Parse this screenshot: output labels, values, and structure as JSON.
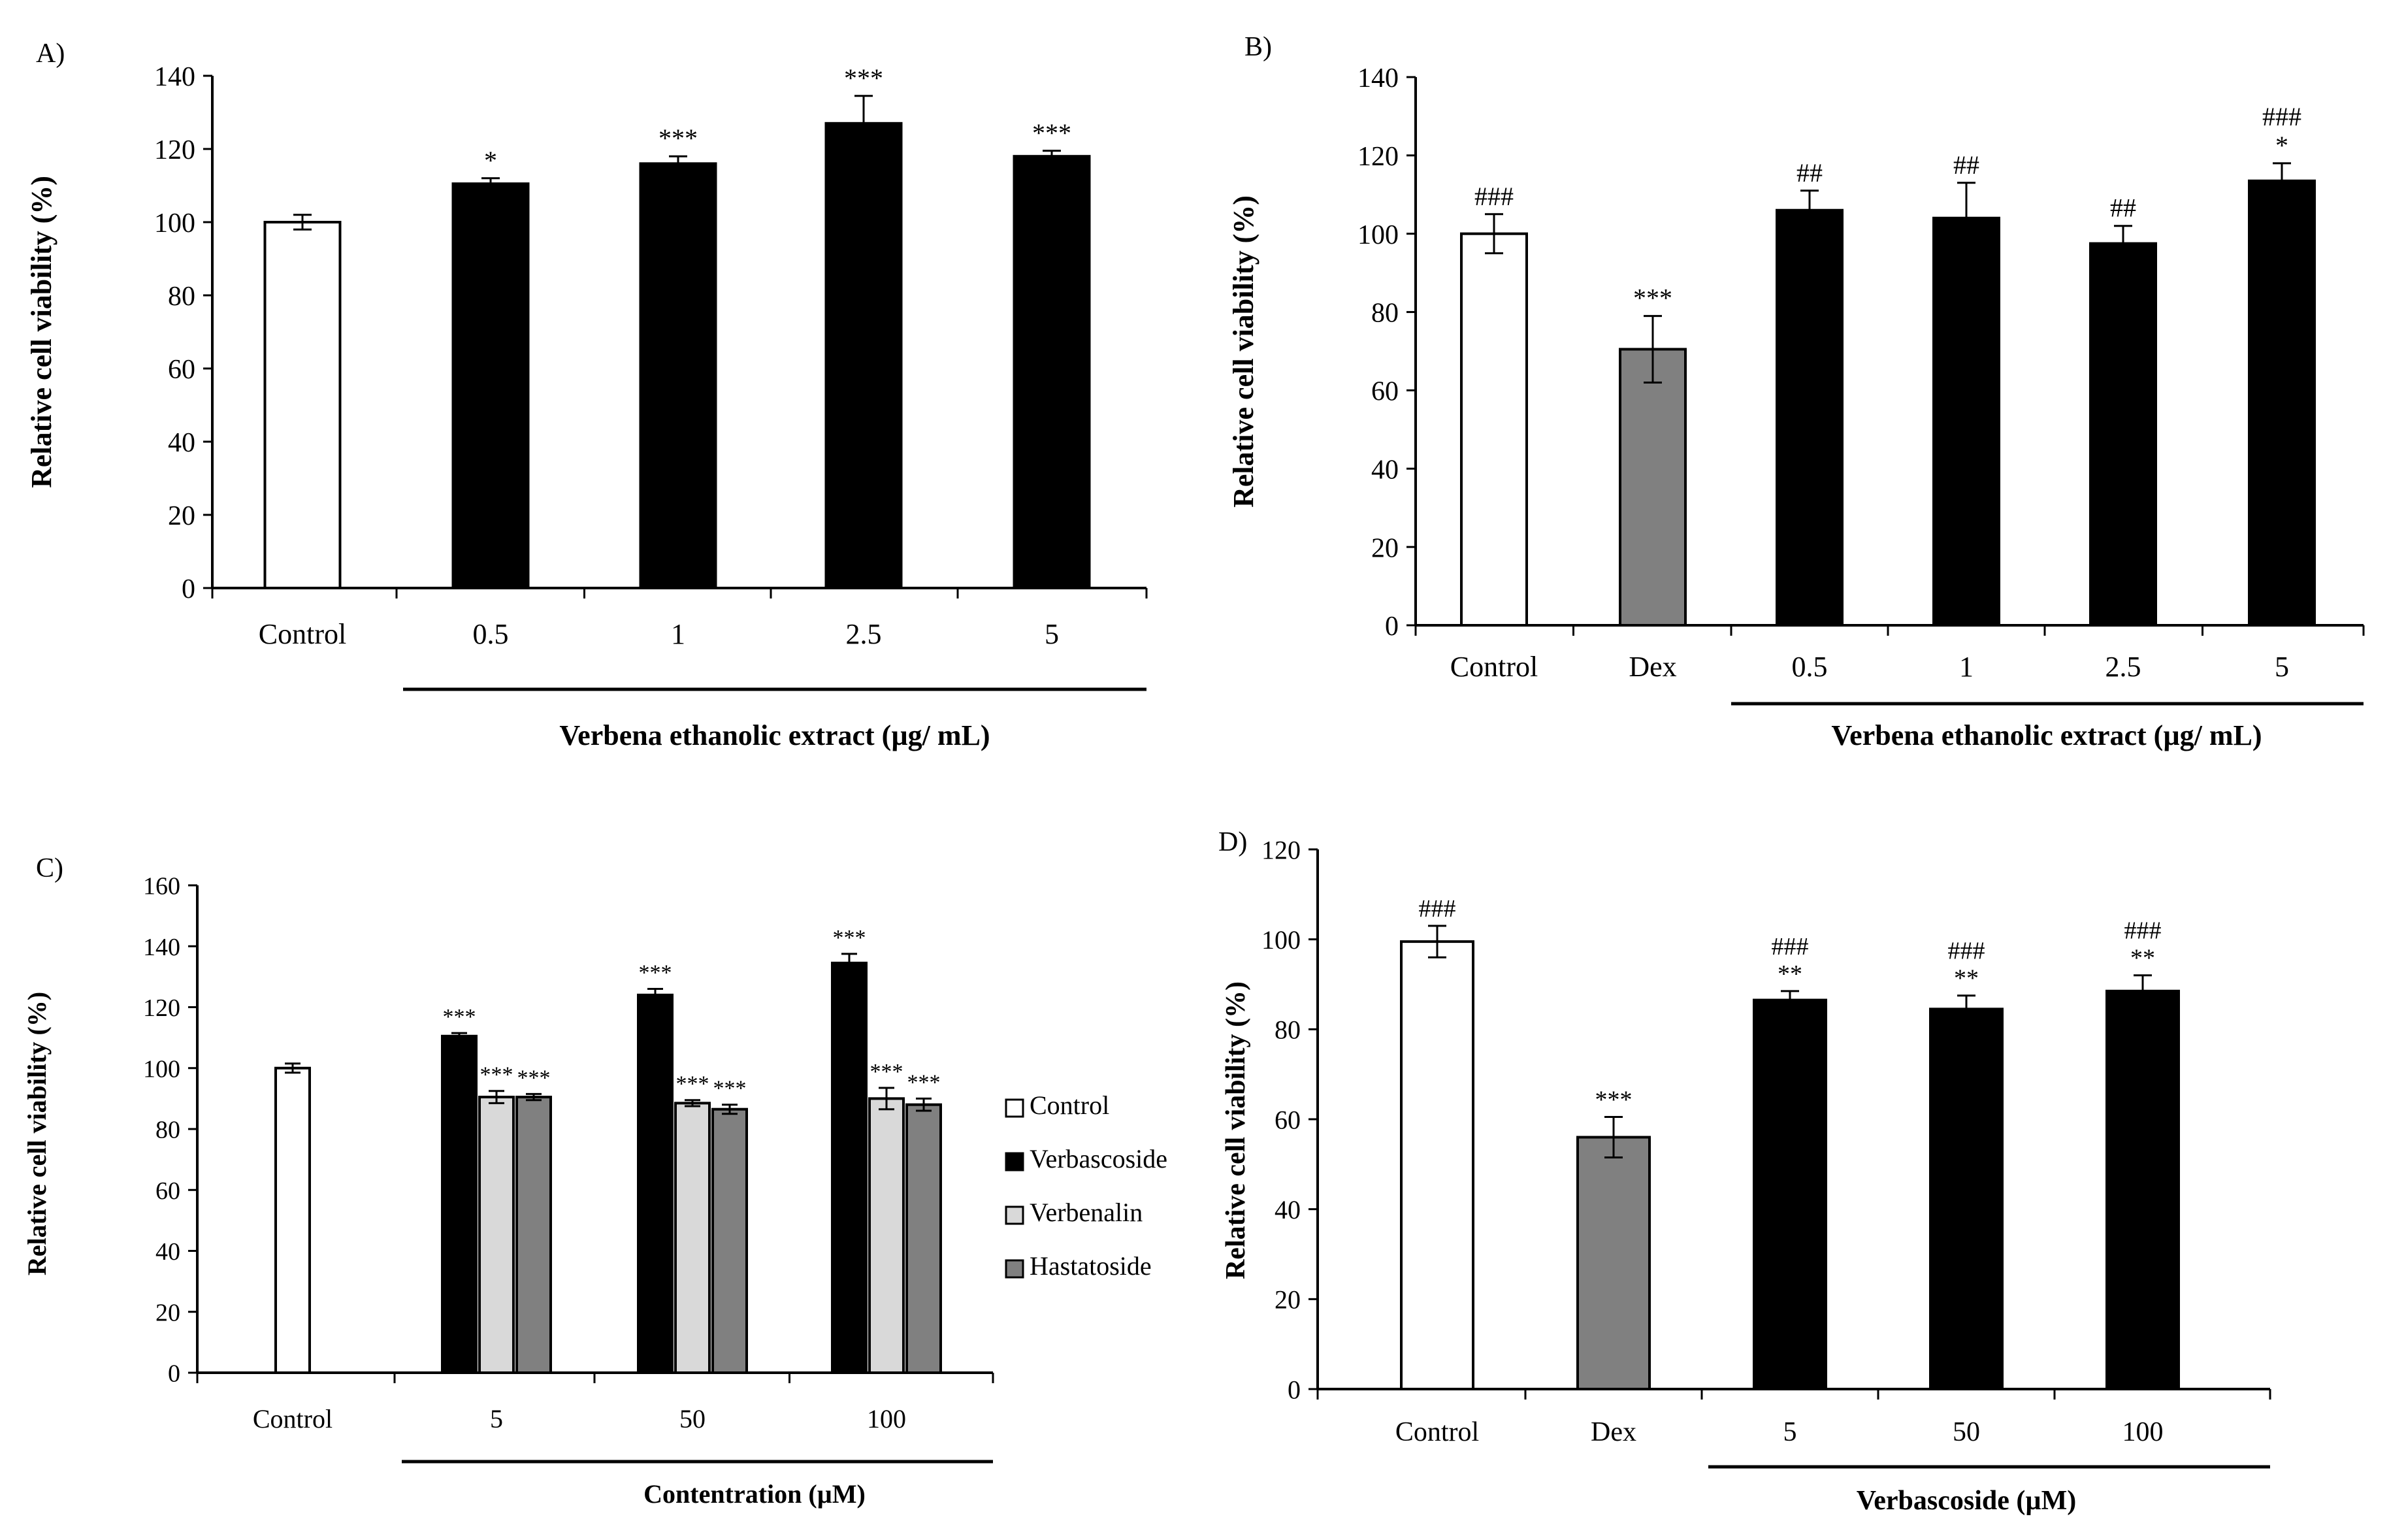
{
  "chart_data": [
    {
      "type": "bar",
      "panel_label": "A)",
      "ylabel": "Relative cell viability (%)",
      "xlabel": "Verbena ethanolic extract (µg/ mL)",
      "ylim": [
        0,
        140
      ],
      "yticks": [
        0,
        20,
        40,
        60,
        80,
        100,
        120,
        140
      ],
      "categories": [
        "Control",
        "0.5",
        "1",
        "2.5",
        "5"
      ],
      "values": [
        100,
        110.5,
        116,
        127,
        118
      ],
      "errors": [
        2,
        1.5,
        2,
        7.5,
        1.5
      ],
      "colors": [
        "#ffffff",
        "#000000",
        "#000000",
        "#000000",
        "#000000"
      ],
      "annotations": [
        [],
        [
          "*"
        ],
        [
          "***"
        ],
        [
          "***"
        ],
        [
          "***"
        ]
      ],
      "grouped_from": 1
    },
    {
      "type": "bar",
      "panel_label": "B)",
      "ylabel": "Relative cell viability (%)",
      "xlabel": "Verbena ethanolic extract (µg/ mL)",
      "ylim": [
        0,
        140
      ],
      "yticks": [
        0,
        20,
        40,
        60,
        80,
        100,
        120,
        140
      ],
      "categories": [
        "Control",
        "Dex",
        "0.5",
        "1",
        "2.5",
        "5"
      ],
      "values": [
        100,
        70.5,
        106,
        104,
        97.5,
        113.5
      ],
      "errors": [
        5,
        8.5,
        5,
        9,
        4.5,
        4.5
      ],
      "colors": [
        "#ffffff",
        "#808080",
        "#000000",
        "#000000",
        "#000000",
        "#000000"
      ],
      "annotations": [
        [
          "###"
        ],
        [
          "***"
        ],
        [
          "##"
        ],
        [
          "##"
        ],
        [
          "##"
        ],
        [
          "###",
          "*"
        ]
      ],
      "grouped_from": 2
    },
    {
      "type": "grouped_bar",
      "panel_label": "C)",
      "ylabel": "Relative cell viability (%)",
      "xlabel": "Contentration (µM)",
      "ylim": [
        0,
        160
      ],
      "yticks": [
        0,
        20,
        40,
        60,
        80,
        100,
        120,
        140,
        160
      ],
      "categories": [
        "Control",
        "5",
        "50",
        "100"
      ],
      "series": [
        {
          "name": "Control",
          "color": "#ffffff",
          "values": [
            100,
            null,
            null,
            null
          ],
          "errors": [
            1.5,
            null,
            null,
            null
          ]
        },
        {
          "name": "Verbascoside",
          "color": "#000000",
          "values": [
            null,
            110.5,
            124,
            134.5
          ],
          "errors": [
            null,
            1,
            2,
            3
          ]
        },
        {
          "name": "Verbenalin",
          "color": "#d9d9d9",
          "values": [
            null,
            90.5,
            88.5,
            90
          ],
          "errors": [
            null,
            2,
            1,
            3.5
          ]
        },
        {
          "name": "Hastatoside",
          "color": "#808080",
          "values": [
            null,
            90.5,
            86.5,
            88
          ],
          "errors": [
            null,
            1,
            1.5,
            2
          ]
        }
      ],
      "annotations": {
        "Verbascoside": [
          "",
          "***",
          "***",
          "***"
        ],
        "Verbenalin": [
          "",
          "***",
          "***",
          "***"
        ],
        "Hastatoside": [
          "",
          "***",
          "***",
          "***"
        ]
      },
      "grouped_from": 1
    },
    {
      "type": "bar",
      "panel_label": "D)",
      "ylabel": "Relative cell viability (%)",
      "xlabel": "Verbascoside (µM)",
      "ylim": [
        0,
        120
      ],
      "yticks": [
        0,
        20,
        40,
        60,
        80,
        100,
        120
      ],
      "categories": [
        "Control",
        "Dex",
        "5",
        "50",
        "100"
      ],
      "values": [
        99.5,
        56,
        86.5,
        84.5,
        88.5
      ],
      "errors": [
        3.5,
        4.5,
        2,
        3,
        3.5
      ],
      "colors": [
        "#ffffff",
        "#808080",
        "#000000",
        "#000000",
        "#000000"
      ],
      "annotations": [
        [
          "###"
        ],
        [
          "***"
        ],
        [
          "###",
          "**"
        ],
        [
          "###",
          "**"
        ],
        [
          "###",
          "**"
        ]
      ],
      "grouped_from": 2
    }
  ]
}
